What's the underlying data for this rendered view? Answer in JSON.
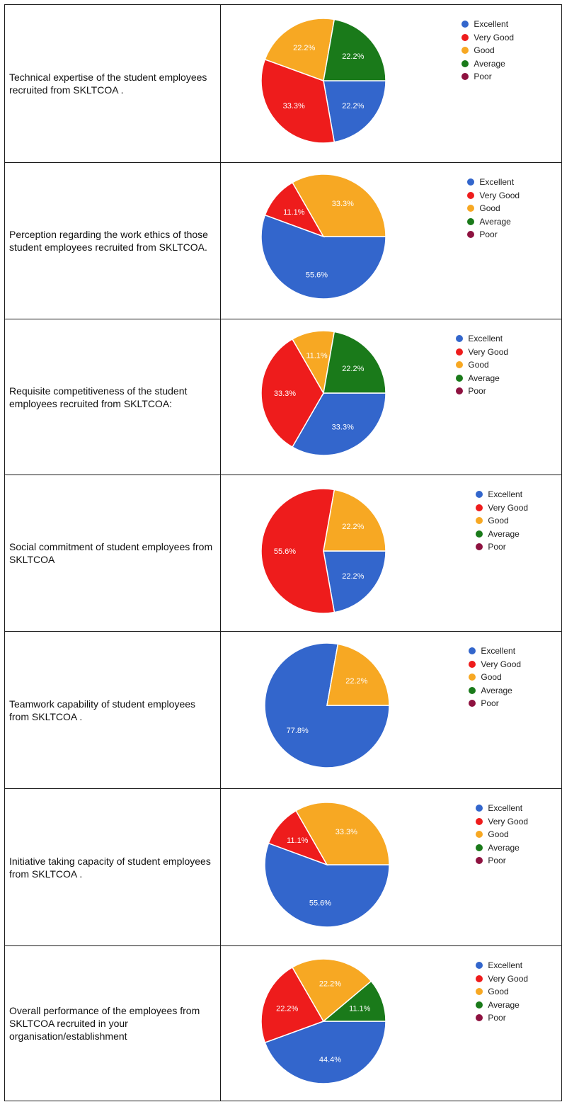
{
  "colors": {
    "Excellent": "#3366cc",
    "Very Good": "#ee1c1c",
    "Good": "#f7a823",
    "Average": "#1a7a1a",
    "Poor": "#8e1240"
  },
  "legend": [
    "Excellent",
    "Very Good",
    "Good",
    "Average",
    "Poor"
  ],
  "chart_data": [
    {
      "type": "pie",
      "question": "Technical expertise of the student employees recruited from  SKLTCOA .",
      "slices": [
        {
          "label": "Excellent",
          "value": 22.2,
          "text": "22.2%"
        },
        {
          "label": "Very Good",
          "value": 33.3,
          "text": "33.3%"
        },
        {
          "label": "Good",
          "value": 22.2,
          "text": "22.2%"
        },
        {
          "label": "Average",
          "value": 22.2,
          "text": "22.2%"
        }
      ]
    },
    {
      "type": "pie",
      "question": "Perception regarding the work ethics of those student employees recruited from SKLTCOA.",
      "slices": [
        {
          "label": "Excellent",
          "value": 55.6,
          "text": "55.6%"
        },
        {
          "label": "Very Good",
          "value": 11.1,
          "text": "11.1%"
        },
        {
          "label": "Good",
          "value": 33.3,
          "text": "33.3%"
        }
      ]
    },
    {
      "type": "pie",
      "question": "Requisite competitiveness of the student employees recruited from SKLTCOA:",
      "slices": [
        {
          "label": "Excellent",
          "value": 33.3,
          "text": "33.3%"
        },
        {
          "label": "Very Good",
          "value": 33.3,
          "text": "33.3%"
        },
        {
          "label": "Good",
          "value": 11.1,
          "text": "11.1%"
        },
        {
          "label": "Average",
          "value": 22.2,
          "text": "22.2%"
        }
      ]
    },
    {
      "type": "pie",
      "question": "Social commitment of student employees from SKLTCOA",
      "slices": [
        {
          "label": "Excellent",
          "value": 22.2,
          "text": "22.2%"
        },
        {
          "label": "Very Good",
          "value": 55.6,
          "text": "55.6%"
        },
        {
          "label": "Good",
          "value": 22.2,
          "text": "22.2%"
        }
      ]
    },
    {
      "type": "pie",
      "question": "Teamwork capability of student employees from  SKLTCOA .",
      "slices": [
        {
          "label": "Excellent",
          "value": 77.8,
          "text": "77.8%"
        },
        {
          "label": "Good",
          "value": 22.2,
          "text": "22.2%"
        }
      ]
    },
    {
      "type": "pie",
      "question": "Initiative taking capacity of student employees from  SKLTCOA .",
      "slices": [
        {
          "label": "Excellent",
          "value": 55.6,
          "text": "55.6%"
        },
        {
          "label": "Very Good",
          "value": 11.1,
          "text": "11.1%"
        },
        {
          "label": "Good",
          "value": 33.3,
          "text": "33.3%"
        }
      ]
    },
    {
      "type": "pie",
      "question": "Overall performance of the employees from SKLTCOA recruited in your organisation/establishment",
      "slices": [
        {
          "label": "Excellent",
          "value": 44.4,
          "text": "44.4%"
        },
        {
          "label": "Very Good",
          "value": 22.2,
          "text": "22.2%"
        },
        {
          "label": "Good",
          "value": 22.2,
          "text": "22.2%"
        },
        {
          "label": "Average",
          "value": 11.1,
          "text": "11.1%"
        }
      ]
    }
  ]
}
